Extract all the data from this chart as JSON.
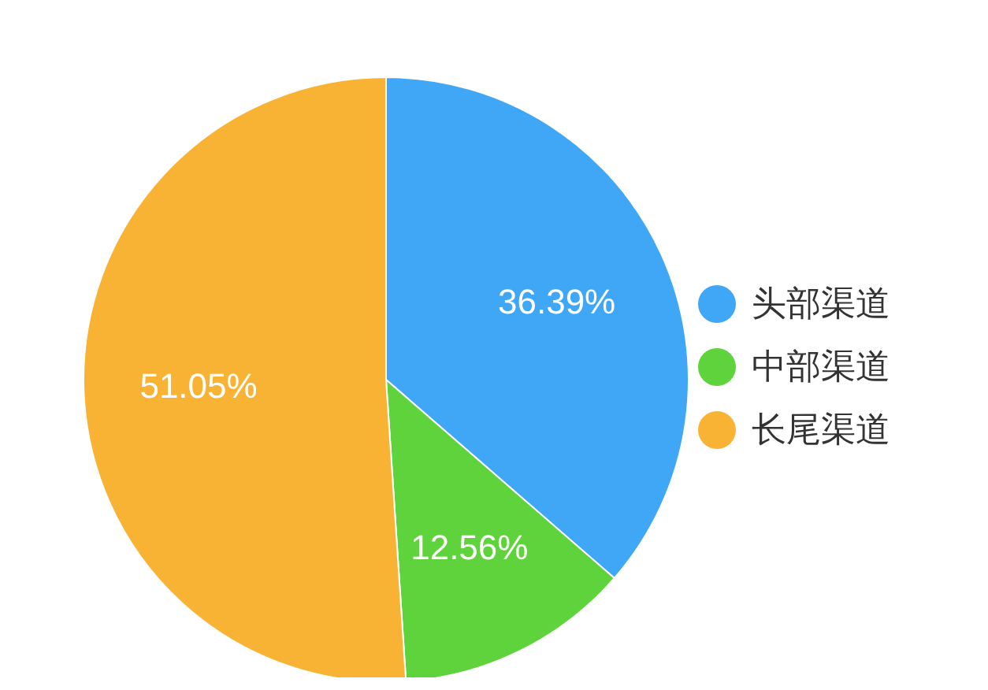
{
  "chart_data": {
    "type": "pie",
    "categories": [
      "头部渠道",
      "中部渠道",
      "长尾渠道"
    ],
    "values": [
      36.39,
      12.56,
      51.05
    ],
    "colors": [
      "#3fa7f5",
      "#5fd33b",
      "#f8b334"
    ],
    "value_labels": [
      "36.39%",
      "12.56%",
      "51.05%"
    ],
    "legend": "right"
  }
}
